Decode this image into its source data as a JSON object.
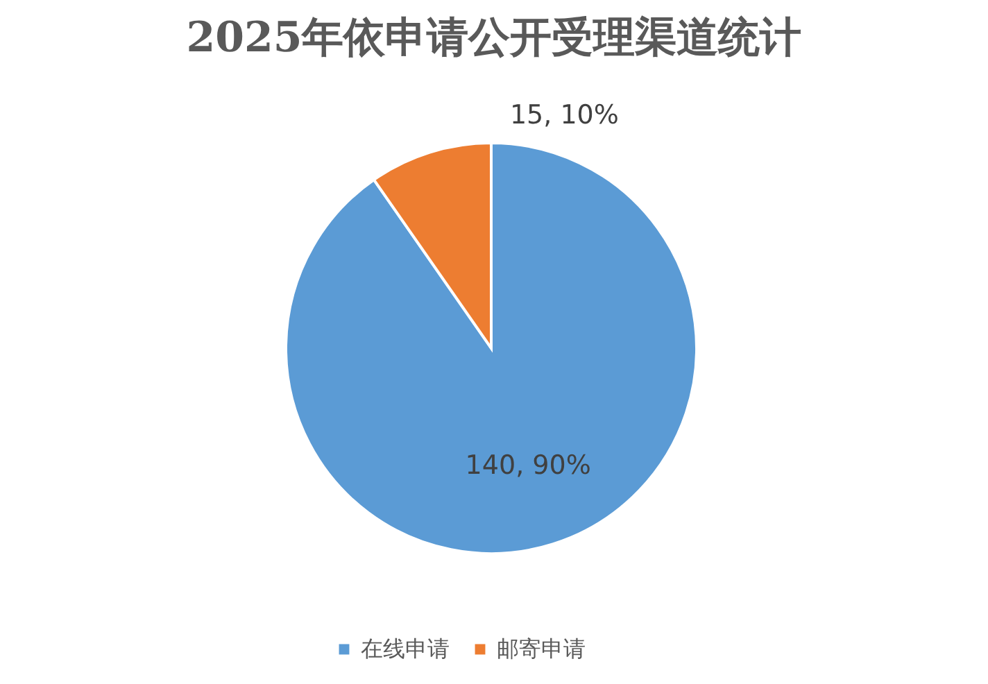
{
  "chart_data": {
    "type": "pie",
    "title": "2025年依申请公开受理渠道统计",
    "categories": [
      "在线申请",
      "邮寄申请"
    ],
    "values": [
      140,
      15
    ],
    "colors": [
      "#5b9bd5",
      "#ed7d31"
    ],
    "value_labels": [
      "140, 90%",
      "15, 10%"
    ],
    "legend": "bottom"
  }
}
